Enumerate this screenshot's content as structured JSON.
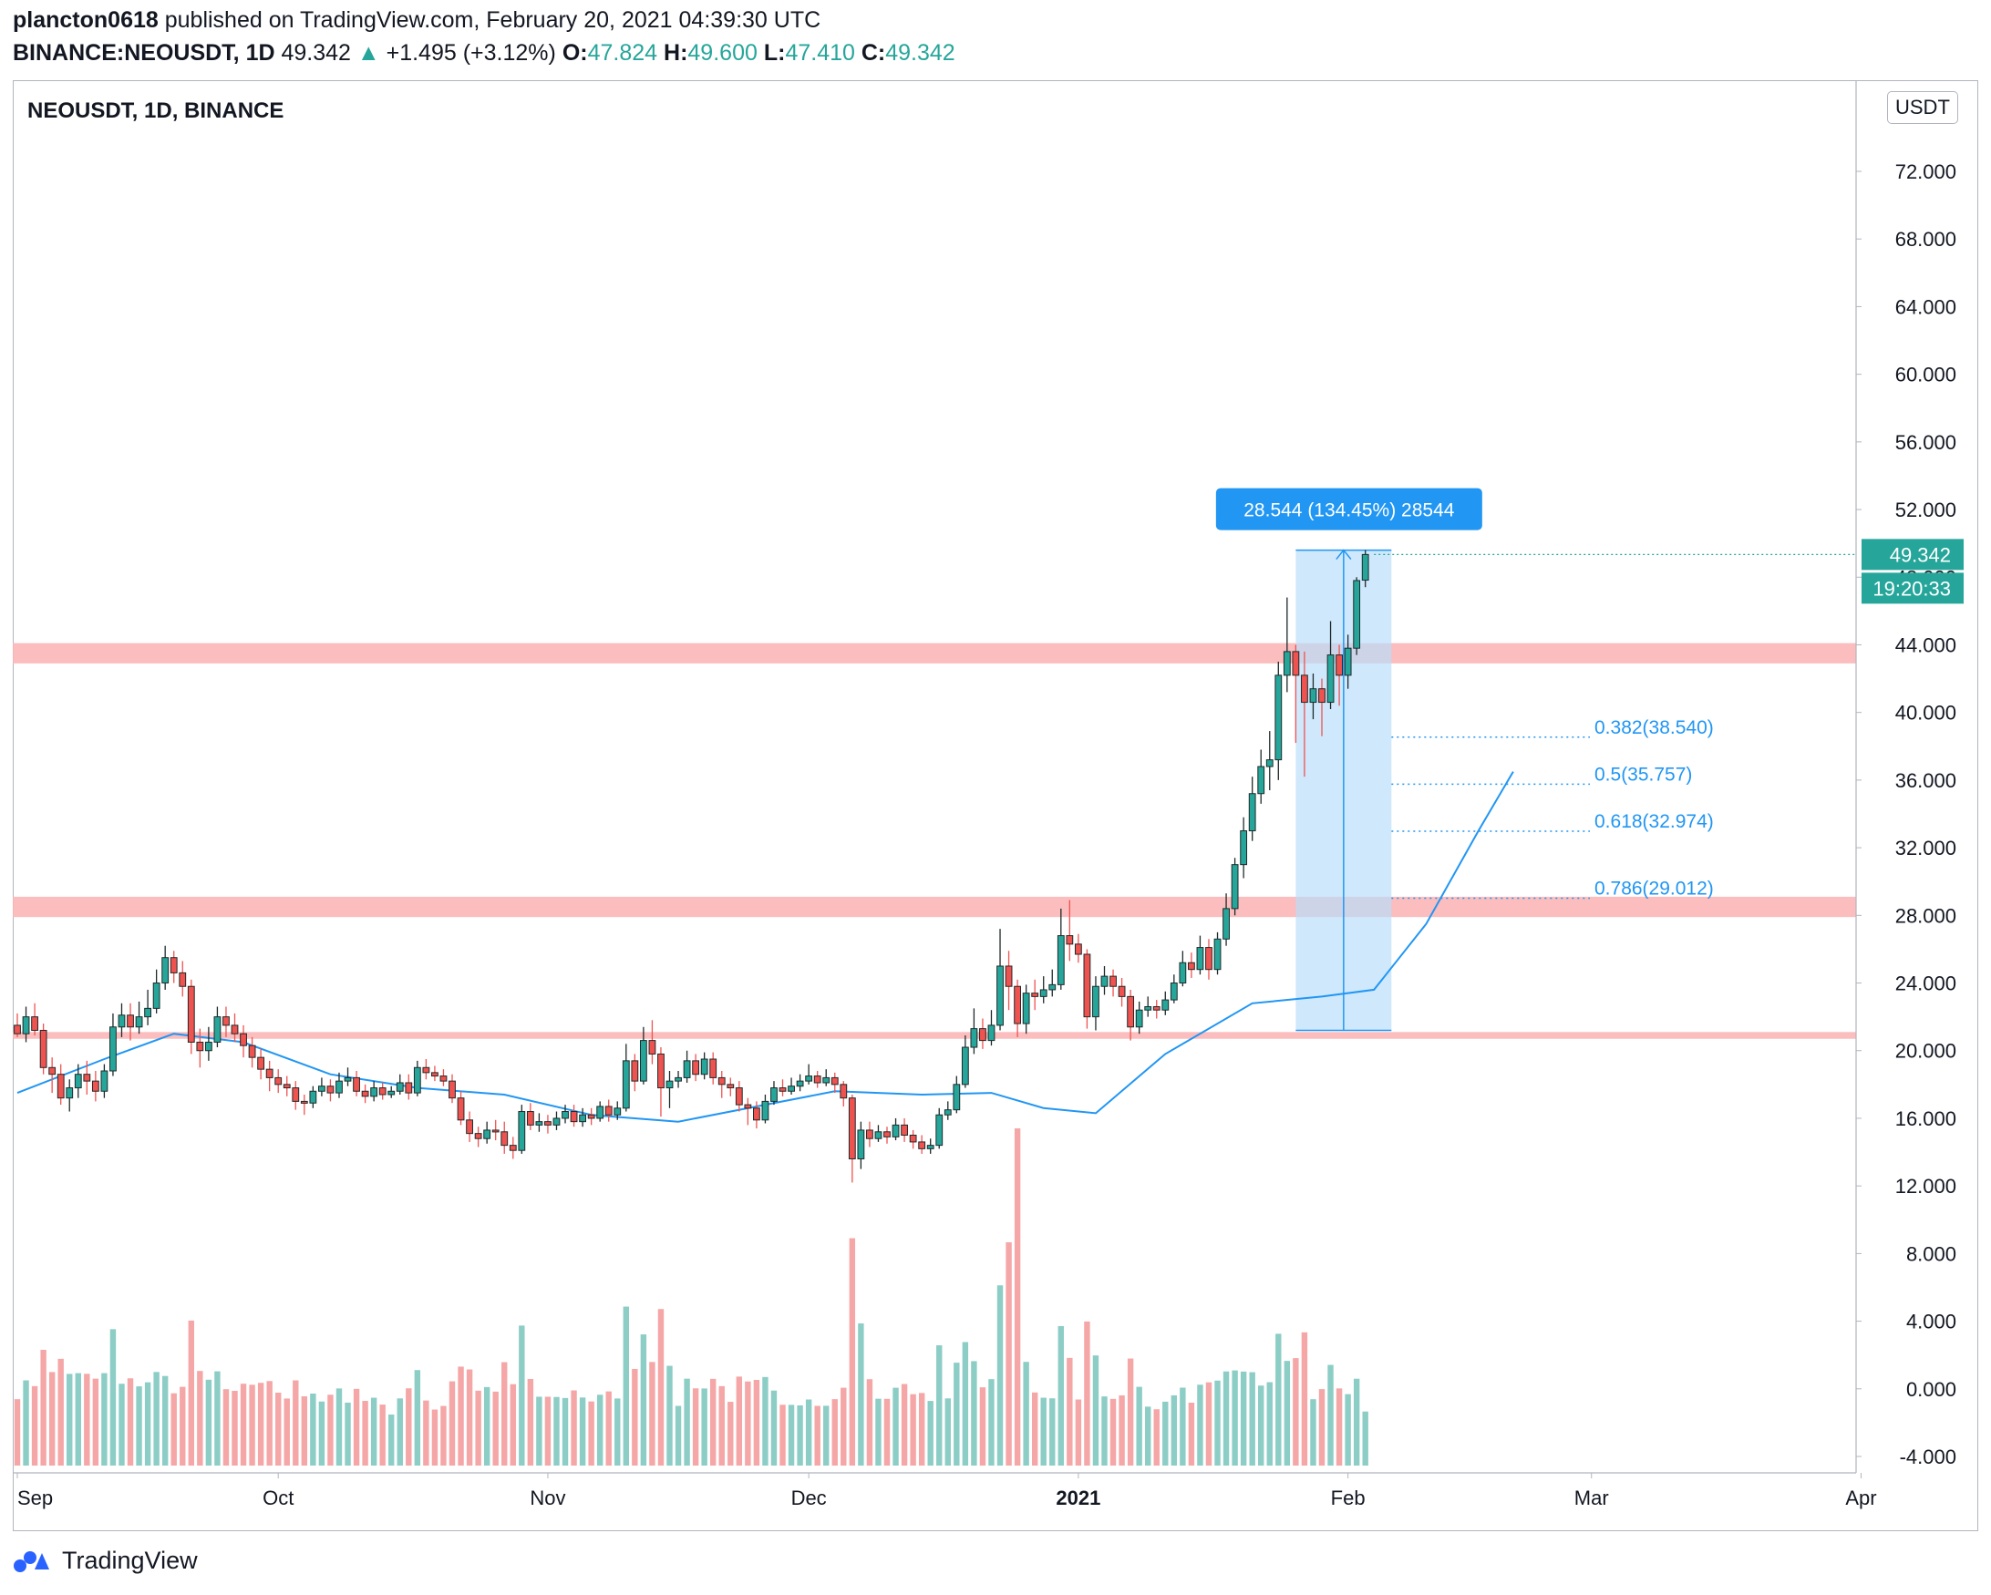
{
  "header": {
    "author": "plancton0618",
    "published_text": " published on TradingView.com, February 20, 2021 04:39:30 UTC",
    "symbol": "BINANCE:NEOUSDT, 1D",
    "last": "49.342",
    "change": "+1.495 (+3.12%)",
    "o_label": "O:",
    "o": "47.824",
    "h_label": "H:",
    "h": "49.600",
    "l_label": "L:",
    "l": "47.410",
    "c_label": "C:",
    "c": "49.342"
  },
  "legend": "NEOUSDT, 1D, BINANCE",
  "unit_badge": "USDT",
  "footer": {
    "brand": "TradingView",
    "logo_icon": "tradingview-logo-icon"
  },
  "colors": {
    "up": "#26a69a",
    "down": "#ef5350",
    "ma": "#2196f3",
    "zone": "#fbb6b6",
    "vol_up": "#8ccdc6",
    "vol_down": "#f5a6a6"
  },
  "chart_data": {
    "type": "candlestick",
    "y_axis": {
      "ticks": [
        "72.000",
        "68.000",
        "64.000",
        "60.000",
        "56.000",
        "52.000",
        "48.000",
        "44.000",
        "40.000",
        "36.000",
        "32.000",
        "28.000",
        "24.000",
        "20.000",
        "16.000",
        "12.000",
        "8.000",
        "4.000",
        "0.000",
        "-4.000"
      ],
      "range": [
        -5,
        78
      ]
    },
    "x_axis": {
      "labels": [
        "Sep",
        "Oct",
        "Nov",
        "Dec",
        "2021",
        "Feb",
        "Mar",
        "Apr"
      ],
      "label_days": [
        0,
        30,
        61,
        91,
        122,
        153,
        181,
        212
      ],
      "range_days": [
        -1,
        215
      ]
    },
    "price_last": "49.342",
    "countdown": "19:20:33",
    "measure_label": "28.544 (134.45%) 28544",
    "measure": {
      "from_day": 147,
      "to_day": 158,
      "low": 21.2,
      "high": 49.6
    },
    "support_zones": [
      {
        "low": 42.9,
        "high": 44.1
      },
      {
        "low": 27.9,
        "high": 29.1
      },
      {
        "low": 20.7,
        "high": 21.1
      }
    ],
    "fib_levels": [
      {
        "label": "0.382(38.540)",
        "value": 38.54
      },
      {
        "label": "0.5(35.757)",
        "value": 35.757
      },
      {
        "label": "0.618(32.974)",
        "value": 32.974
      },
      {
        "label": "0.786(29.012)",
        "value": 29.012
      }
    ],
    "ma_anchors": [
      [
        0,
        17.5
      ],
      [
        10,
        19.5
      ],
      [
        18,
        21.0
      ],
      [
        26,
        20.5
      ],
      [
        36,
        18.6
      ],
      [
        46,
        17.8
      ],
      [
        56,
        17.4
      ],
      [
        66,
        16.2
      ],
      [
        76,
        15.8
      ],
      [
        86,
        16.8
      ],
      [
        94,
        17.6
      ],
      [
        104,
        17.4
      ],
      [
        112,
        17.5
      ],
      [
        118,
        16.6
      ],
      [
        124,
        16.3
      ],
      [
        132,
        19.8
      ],
      [
        142,
        22.8
      ],
      [
        150,
        23.2
      ],
      [
        156,
        23.6
      ],
      [
        162,
        27.5
      ],
      [
        168,
        33.0
      ],
      [
        172,
        36.5
      ]
    ],
    "candles_approx": [
      [
        0,
        21.5,
        21.0,
        22.2,
        20.8
      ],
      [
        1,
        21.0,
        22.0,
        22.6,
        20.5
      ],
      [
        2,
        22.0,
        21.2,
        22.8,
        20.9
      ],
      [
        3,
        21.2,
        19.0,
        21.6,
        18.6
      ],
      [
        4,
        19.0,
        18.6,
        19.6,
        17.5
      ],
      [
        5,
        18.6,
        17.2,
        19.2,
        16.8
      ],
      [
        6,
        17.2,
        17.8,
        18.3,
        16.4
      ],
      [
        7,
        17.8,
        18.6,
        19.2,
        17.2
      ],
      [
        8,
        18.6,
        18.2,
        19.4,
        17.4
      ],
      [
        9,
        18.2,
        17.6,
        18.8,
        17.0
      ],
      [
        10,
        17.6,
        18.8,
        19.2,
        17.2
      ],
      [
        11,
        18.8,
        21.4,
        22.2,
        18.5
      ],
      [
        12,
        21.4,
        22.1,
        22.8,
        20.8
      ],
      [
        13,
        22.1,
        21.4,
        22.8,
        20.6
      ],
      [
        14,
        21.4,
        22.0,
        22.9,
        21.0
      ],
      [
        15,
        22.0,
        22.5,
        23.6,
        21.5
      ],
      [
        16,
        22.5,
        24.0,
        24.8,
        22.2
      ],
      [
        17,
        24.0,
        25.5,
        26.2,
        23.6
      ],
      [
        18,
        25.5,
        24.6,
        25.9,
        24.0
      ],
      [
        19,
        24.6,
        23.8,
        25.3,
        23.2
      ],
      [
        20,
        23.8,
        20.5,
        24.2,
        19.8
      ],
      [
        21,
        20.5,
        20.0,
        21.3,
        19.0
      ],
      [
        22,
        20.0,
        20.5,
        21.4,
        19.4
      ],
      [
        23,
        20.5,
        22.0,
        22.6,
        20.2
      ],
      [
        24,
        22.0,
        21.5,
        22.6,
        20.8
      ],
      [
        25,
        21.5,
        21.0,
        22.2,
        20.5
      ],
      [
        26,
        21.0,
        20.3,
        21.5,
        19.6
      ],
      [
        27,
        20.3,
        19.6,
        20.8,
        19.0
      ],
      [
        28,
        19.6,
        18.9,
        20.1,
        18.3
      ],
      [
        29,
        18.9,
        18.4,
        19.4,
        17.6
      ],
      [
        30,
        18.4,
        18.0,
        18.9,
        17.5
      ],
      [
        31,
        18.0,
        17.8,
        18.5,
        17.3
      ],
      [
        32,
        17.8,
        17.0,
        18.2,
        16.5
      ],
      [
        33,
        17.0,
        16.9,
        17.4,
        16.2
      ],
      [
        34,
        16.9,
        17.6,
        17.9,
        16.6
      ],
      [
        35,
        17.6,
        17.9,
        18.4,
        17.3
      ],
      [
        36,
        17.9,
        17.5,
        18.3,
        17.0
      ],
      [
        37,
        17.5,
        18.2,
        18.7,
        17.2
      ],
      [
        38,
        18.2,
        18.4,
        19.0,
        17.9
      ],
      [
        39,
        18.4,
        17.6,
        18.8,
        17.3
      ],
      [
        40,
        17.6,
        17.3,
        18.0,
        16.9
      ],
      [
        41,
        17.3,
        17.8,
        18.2,
        17.0
      ],
      [
        42,
        17.8,
        17.4,
        18.1,
        17.1
      ],
      [
        43,
        17.4,
        17.6,
        17.9,
        17.2
      ],
      [
        44,
        17.6,
        18.1,
        18.6,
        17.4
      ],
      [
        45,
        18.1,
        17.5,
        18.6,
        17.1
      ],
      [
        46,
        17.5,
        19.0,
        19.4,
        17.3
      ],
      [
        47,
        19.0,
        18.7,
        19.5,
        18.3
      ],
      [
        48,
        18.7,
        18.5,
        19.1,
        18.2
      ],
      [
        49,
        18.5,
        18.2,
        18.9,
        17.9
      ],
      [
        50,
        18.2,
        17.2,
        18.6,
        16.9
      ],
      [
        51,
        17.2,
        15.9,
        17.6,
        15.6
      ],
      [
        52,
        15.9,
        15.1,
        16.4,
        14.6
      ],
      [
        53,
        15.1,
        14.8,
        15.5,
        14.3
      ],
      [
        54,
        14.8,
        15.3,
        15.8,
        14.5
      ],
      [
        55,
        15.3,
        15.2,
        15.9,
        14.7
      ],
      [
        56,
        15.2,
        14.4,
        15.8,
        13.9
      ],
      [
        57,
        14.4,
        14.1,
        14.9,
        13.6
      ],
      [
        58,
        14.1,
        16.4,
        16.8,
        13.9
      ],
      [
        59,
        16.4,
        15.6,
        16.9,
        15.3
      ],
      [
        60,
        15.6,
        15.8,
        16.3,
        15.2
      ],
      [
        61,
        15.8,
        15.6,
        16.2,
        15.1
      ],
      [
        62,
        15.6,
        16.0,
        16.4,
        15.3
      ],
      [
        63,
        16.0,
        16.4,
        16.8,
        15.7
      ],
      [
        64,
        16.4,
        15.8,
        16.8,
        15.5
      ],
      [
        65,
        15.8,
        16.2,
        16.6,
        15.5
      ],
      [
        66,
        16.2,
        16.0,
        16.6,
        15.6
      ],
      [
        67,
        16.0,
        16.7,
        17.0,
        15.8
      ],
      [
        68,
        16.7,
        16.2,
        17.1,
        15.8
      ],
      [
        69,
        16.2,
        16.6,
        17.0,
        15.9
      ],
      [
        70,
        16.6,
        19.4,
        20.4,
        16.4
      ],
      [
        71,
        19.4,
        18.2,
        19.8,
        17.6
      ],
      [
        72,
        18.2,
        20.6,
        21.4,
        18.0
      ],
      [
        73,
        20.6,
        19.8,
        21.8,
        19.2
      ],
      [
        74,
        19.8,
        17.8,
        20.2,
        16.1
      ],
      [
        75,
        17.8,
        18.2,
        18.8,
        16.6
      ],
      [
        76,
        18.2,
        18.4,
        18.8,
        17.8
      ],
      [
        77,
        18.4,
        19.4,
        20.0,
        18.1
      ],
      [
        78,
        19.4,
        18.6,
        19.8,
        18.2
      ],
      [
        79,
        18.6,
        19.5,
        19.9,
        18.3
      ],
      [
        80,
        19.5,
        18.4,
        19.9,
        18.0
      ],
      [
        81,
        18.4,
        18.0,
        18.8,
        17.2
      ],
      [
        82,
        18.0,
        17.8,
        18.4,
        17.3
      ],
      [
        83,
        17.8,
        16.8,
        18.2,
        16.4
      ],
      [
        84,
        16.8,
        16.6,
        17.2,
        15.6
      ],
      [
        85,
        16.6,
        15.9,
        17.0,
        15.4
      ],
      [
        86,
        15.9,
        17.0,
        17.4,
        15.7
      ],
      [
        87,
        17.0,
        17.8,
        18.2,
        16.8
      ],
      [
        88,
        17.8,
        17.6,
        18.3,
        17.3
      ],
      [
        89,
        17.6,
        17.9,
        18.4,
        17.4
      ],
      [
        90,
        17.9,
        18.2,
        18.6,
        17.6
      ],
      [
        91,
        18.2,
        18.5,
        19.2,
        18.0
      ],
      [
        92,
        18.5,
        18.1,
        18.8,
        17.8
      ],
      [
        93,
        18.1,
        18.4,
        18.9,
        17.9
      ],
      [
        94,
        18.4,
        18.0,
        18.7,
        17.5
      ],
      [
        95,
        18.0,
        17.2,
        18.2,
        16.7
      ],
      [
        96,
        17.2,
        13.6,
        17.4,
        12.2
      ],
      [
        97,
        13.6,
        15.3,
        15.8,
        13.0
      ],
      [
        98,
        15.3,
        14.8,
        15.8,
        14.3
      ],
      [
        99,
        14.8,
        15.2,
        15.6,
        14.6
      ],
      [
        100,
        15.2,
        14.9,
        15.5,
        14.5
      ],
      [
        101,
        14.9,
        15.6,
        16.0,
        14.7
      ],
      [
        102,
        15.6,
        15.0,
        16.0,
        14.6
      ],
      [
        103,
        15.0,
        14.6,
        15.3,
        14.2
      ],
      [
        104,
        14.6,
        14.2,
        15.0,
        13.9
      ],
      [
        105,
        14.2,
        14.4,
        14.8,
        13.9
      ],
      [
        106,
        14.4,
        16.2,
        16.6,
        14.2
      ],
      [
        107,
        16.2,
        16.5,
        17.0,
        15.9
      ],
      [
        108,
        16.5,
        18.0,
        18.5,
        16.3
      ],
      [
        109,
        18.0,
        20.2,
        20.9,
        17.8
      ],
      [
        110,
        20.2,
        21.3,
        22.5,
        19.8
      ],
      [
        111,
        21.3,
        20.6,
        21.9,
        20.1
      ],
      [
        112,
        20.6,
        21.5,
        22.4,
        20.3
      ],
      [
        113,
        21.5,
        25.0,
        27.2,
        21.2
      ],
      [
        114,
        25.0,
        23.8,
        25.9,
        22.4
      ],
      [
        115,
        23.8,
        21.6,
        24.2,
        20.8
      ],
      [
        116,
        21.6,
        23.4,
        23.9,
        21.0
      ],
      [
        117,
        23.4,
        23.2,
        24.2,
        22.4
      ],
      [
        118,
        23.2,
        23.6,
        24.4,
        22.8
      ],
      [
        119,
        23.6,
        23.9,
        24.8,
        23.2
      ],
      [
        120,
        23.9,
        26.8,
        28.4,
        23.6
      ],
      [
        121,
        26.8,
        26.3,
        28.9,
        25.3
      ],
      [
        122,
        26.3,
        25.7,
        26.9,
        25.2
      ],
      [
        123,
        25.7,
        22.0,
        26.0,
        21.3
      ],
      [
        124,
        22.0,
        23.8,
        24.4,
        21.2
      ],
      [
        125,
        23.8,
        24.4,
        25.0,
        23.3
      ],
      [
        126,
        24.4,
        23.8,
        24.8,
        23.2
      ],
      [
        127,
        23.8,
        23.2,
        24.3,
        22.6
      ],
      [
        128,
        23.2,
        21.4,
        23.6,
        20.6
      ],
      [
        129,
        21.4,
        22.4,
        22.9,
        21.0
      ],
      [
        130,
        22.4,
        22.6,
        23.2,
        22.0
      ],
      [
        131,
        22.6,
        22.4,
        23.0,
        21.9
      ],
      [
        132,
        22.4,
        23.0,
        23.5,
        22.1
      ],
      [
        133,
        23.0,
        24.0,
        24.5,
        22.8
      ],
      [
        134,
        24.0,
        25.2,
        25.9,
        23.8
      ],
      [
        135,
        25.2,
        24.8,
        25.8,
        24.3
      ],
      [
        136,
        24.8,
        26.1,
        26.8,
        24.5
      ],
      [
        137,
        26.1,
        24.8,
        26.6,
        24.2
      ],
      [
        138,
        24.8,
        26.6,
        27.0,
        24.5
      ],
      [
        139,
        26.6,
        28.4,
        29.3,
        26.2
      ],
      [
        140,
        28.4,
        31.0,
        31.4,
        28.0
      ],
      [
        141,
        31.0,
        33.0,
        33.8,
        30.2
      ],
      [
        142,
        33.0,
        35.2,
        36.2,
        32.4
      ],
      [
        143,
        35.2,
        36.8,
        37.8,
        34.6
      ],
      [
        144,
        36.8,
        37.2,
        38.9,
        35.4
      ],
      [
        145,
        37.2,
        42.2,
        43.0,
        36.0
      ],
      [
        146,
        42.2,
        43.6,
        46.8,
        41.2
      ],
      [
        147,
        43.6,
        42.2,
        44.0,
        38.2
      ],
      [
        148,
        42.2,
        40.6,
        43.6,
        36.2
      ],
      [
        149,
        40.6,
        41.4,
        42.3,
        39.6
      ],
      [
        150,
        41.4,
        40.6,
        42.0,
        38.6
      ],
      [
        151,
        40.6,
        43.4,
        45.4,
        40.2
      ],
      [
        152,
        43.4,
        42.2,
        44.0,
        40.4
      ],
      [
        153,
        42.2,
        43.8,
        44.6,
        41.4
      ],
      [
        154,
        43.8,
        47.8,
        48.0,
        43.4
      ],
      [
        155,
        47.824,
        49.342,
        49.6,
        47.41
      ]
    ],
    "volume_shape": "estimated"
  }
}
